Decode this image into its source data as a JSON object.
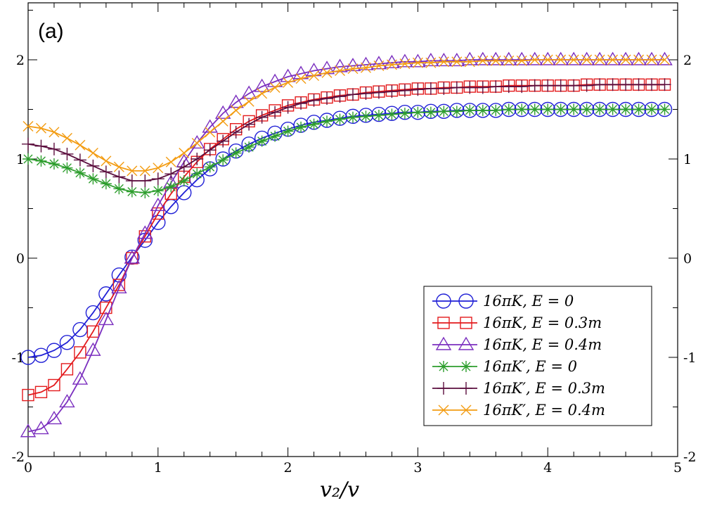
{
  "chart_data": {
    "type": "line",
    "panel_label": "(a)",
    "title": "",
    "xlabel": "v₂/v",
    "ylabel": "",
    "xlim": [
      0,
      5
    ],
    "ylim": [
      -2,
      2.5
    ],
    "x_ticks": [
      "0",
      "1",
      "2",
      "3",
      "4",
      "5"
    ],
    "y_ticks": [
      "-2",
      "-1",
      "0",
      "1",
      "2"
    ],
    "y_ticks_right": [
      "-2",
      "-1",
      "0",
      "1",
      "2"
    ],
    "legend_position": "bottom-right",
    "x": [
      0,
      0.1,
      0.2,
      0.3,
      0.4,
      0.5,
      0.6,
      0.7,
      0.8,
      0.9,
      1.0,
      1.1,
      1.2,
      1.3,
      1.4,
      1.5,
      1.6,
      1.7,
      1.8,
      1.9,
      2.0,
      2.1,
      2.2,
      2.3,
      2.4,
      2.5,
      2.6,
      2.7,
      2.8,
      2.9,
      3.0,
      3.1,
      3.2,
      3.3,
      3.4,
      3.5,
      3.6,
      3.7,
      3.8,
      3.9,
      4.0,
      4.1,
      4.2,
      4.3,
      4.4,
      4.5,
      4.6,
      4.7,
      4.8,
      4.9
    ],
    "series": [
      {
        "name": "16πK,   E = 0",
        "color": "#1f1fd6",
        "marker": "circle",
        "values": [
          -1.0,
          -0.98,
          -0.93,
          -0.85,
          -0.72,
          -0.55,
          -0.36,
          -0.17,
          0.01,
          0.18,
          0.36,
          0.52,
          0.66,
          0.79,
          0.9,
          1.0,
          1.08,
          1.15,
          1.21,
          1.26,
          1.3,
          1.34,
          1.37,
          1.39,
          1.41,
          1.43,
          1.44,
          1.45,
          1.46,
          1.47,
          1.47,
          1.48,
          1.48,
          1.49,
          1.49,
          1.49,
          1.49,
          1.5,
          1.5,
          1.5,
          1.5,
          1.5,
          1.5,
          1.5,
          1.5,
          1.5,
          1.5,
          1.5,
          1.5,
          1.5
        ]
      },
      {
        "name": "16πK,   E = 0.3m",
        "color": "#e31a1c",
        "marker": "square",
        "values": [
          -1.38,
          -1.35,
          -1.28,
          -1.12,
          -0.95,
          -0.74,
          -0.5,
          -0.27,
          0.0,
          0.22,
          0.45,
          0.65,
          0.82,
          0.97,
          1.1,
          1.2,
          1.3,
          1.38,
          1.44,
          1.49,
          1.54,
          1.57,
          1.6,
          1.62,
          1.64,
          1.65,
          1.67,
          1.68,
          1.69,
          1.7,
          1.71,
          1.71,
          1.72,
          1.72,
          1.73,
          1.73,
          1.73,
          1.74,
          1.74,
          1.74,
          1.74,
          1.74,
          1.74,
          1.75,
          1.75,
          1.75,
          1.75,
          1.75,
          1.75,
          1.75
        ]
      },
      {
        "name": "16πK,   E = 0.4m",
        "color": "#7b2fbf",
        "marker": "triangle",
        "values": [
          -1.75,
          -1.72,
          -1.62,
          -1.45,
          -1.22,
          -0.93,
          -0.62,
          -0.3,
          0.0,
          0.25,
          0.53,
          0.76,
          0.97,
          1.16,
          1.32,
          1.46,
          1.57,
          1.66,
          1.73,
          1.78,
          1.83,
          1.86,
          1.89,
          1.91,
          1.93,
          1.94,
          1.95,
          1.96,
          1.97,
          1.98,
          1.98,
          1.99,
          1.99,
          1.99,
          2.0,
          2.0,
          2.0,
          2.0,
          2.0,
          2.0,
          2.0,
          2.0,
          2.0,
          2.0,
          2.0,
          2.0,
          2.0,
          2.0,
          2.0,
          2.0
        ]
      },
      {
        "name": "16πK′, E = 0",
        "color": "#2e9e2e",
        "marker": "asterisk",
        "values": [
          1.0,
          0.98,
          0.95,
          0.91,
          0.86,
          0.8,
          0.75,
          0.7,
          0.67,
          0.66,
          0.68,
          0.72,
          0.78,
          0.85,
          0.92,
          0.99,
          1.06,
          1.12,
          1.18,
          1.23,
          1.28,
          1.32,
          1.35,
          1.38,
          1.4,
          1.42,
          1.43,
          1.44,
          1.45,
          1.46,
          1.47,
          1.47,
          1.48,
          1.48,
          1.49,
          1.49,
          1.49,
          1.5,
          1.5,
          1.5,
          1.5,
          1.5,
          1.5,
          1.5,
          1.5,
          1.5,
          1.5,
          1.5,
          1.5,
          1.5
        ]
      },
      {
        "name": "16πK′, E = 0.3m",
        "color": "#5c0f3f",
        "marker": "plus",
        "values": [
          1.15,
          1.13,
          1.1,
          1.05,
          0.99,
          0.93,
          0.87,
          0.82,
          0.78,
          0.78,
          0.8,
          0.85,
          0.92,
          1.0,
          1.09,
          1.18,
          1.27,
          1.35,
          1.42,
          1.47,
          1.52,
          1.56,
          1.59,
          1.61,
          1.63,
          1.65,
          1.66,
          1.67,
          1.68,
          1.69,
          1.7,
          1.71,
          1.71,
          1.72,
          1.72,
          1.72,
          1.73,
          1.73,
          1.73,
          1.74,
          1.74,
          1.74,
          1.74,
          1.74,
          1.75,
          1.75,
          1.75,
          1.75,
          1.75,
          1.75
        ]
      },
      {
        "name": "16πK′, E = 0.4m",
        "color": "#f39c12",
        "marker": "cross",
        "values": [
          1.33,
          1.31,
          1.27,
          1.21,
          1.14,
          1.06,
          0.98,
          0.92,
          0.88,
          0.88,
          0.91,
          0.97,
          1.06,
          1.16,
          1.27,
          1.38,
          1.49,
          1.58,
          1.66,
          1.72,
          1.77,
          1.81,
          1.84,
          1.87,
          1.89,
          1.91,
          1.92,
          1.94,
          1.95,
          1.96,
          1.97,
          1.97,
          1.98,
          1.98,
          1.98,
          1.99,
          1.99,
          1.99,
          1.99,
          2.0,
          2.0,
          2.0,
          2.0,
          2.0,
          2.0,
          2.0,
          2.0,
          2.0,
          2.0,
          2.0
        ]
      }
    ]
  }
}
